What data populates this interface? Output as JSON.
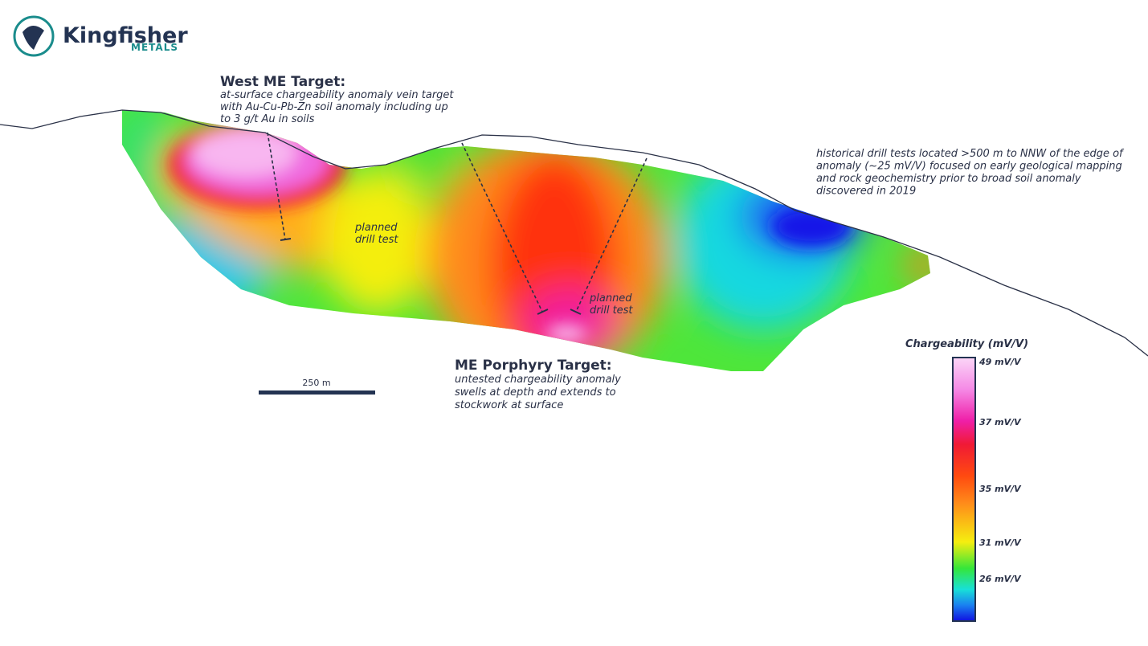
{
  "logo": {
    "name": "Kingfisher",
    "sub": "METALS"
  },
  "west_target": {
    "title": "West ME Target:",
    "lines": [
      "at-surface chargeability anomaly vein target",
      "with Au-Cu-Pb-Zn soil anomaly including up",
      "to 3 g/t Au in soils"
    ]
  },
  "planned_1": [
    "planned",
    "drill test"
  ],
  "planned_2": [
    "planned",
    "drill test"
  ],
  "porphyry_target": {
    "title": "ME Porphyry Target:",
    "lines": [
      "untested chargeability anomaly",
      "swells at depth and extends to",
      "stockwork at surface"
    ]
  },
  "historical_note": [
    "historical drill tests located >500 m to NNW of the edge of",
    "anomaly (~25 mV/V) focused on early geological mapping",
    "and rock geochemistry prior to broad soil anomaly",
    "discovered in 2019"
  ],
  "scale_bar": "250 m",
  "legend": {
    "title": "Chargeability (mV/V)",
    "labels": [
      "49 mV/V",
      "37 mV/V",
      "35 mV/V",
      "31 mV/V",
      "26 mV/V"
    ]
  }
}
